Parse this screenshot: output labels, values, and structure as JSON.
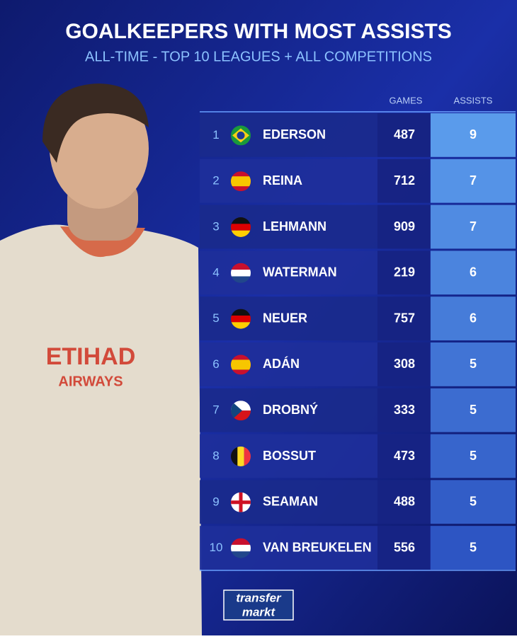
{
  "header": {
    "title": "GOALKEEPERS WITH MOST ASSISTS",
    "subtitle": "ALL-TIME - TOP 10 LEAGUES + ALL COMPETITIONS"
  },
  "table": {
    "columns": [
      "GAMES",
      "ASSISTS"
    ],
    "rows": [
      [
        1,
        "EDERSON",
        487,
        9
      ],
      [
        2,
        "REINA",
        712,
        7
      ],
      [
        3,
        "LEHMANN",
        909,
        7
      ],
      [
        4,
        "WATERMAN",
        219,
        6
      ],
      [
        5,
        "NEUER",
        757,
        6
      ],
      [
        6,
        "ADÁN",
        308,
        5
      ],
      [
        7,
        "DROBNÝ",
        333,
        5
      ],
      [
        8,
        "BOSSUT",
        473,
        5
      ],
      [
        9,
        "SEAMAN",
        488,
        5
      ],
      [
        10,
        "VAN BREUKELEN",
        556,
        5
      ]
    ]
  },
  "logo": {
    "top": "transfer",
    "bottom": "markt"
  }
}
